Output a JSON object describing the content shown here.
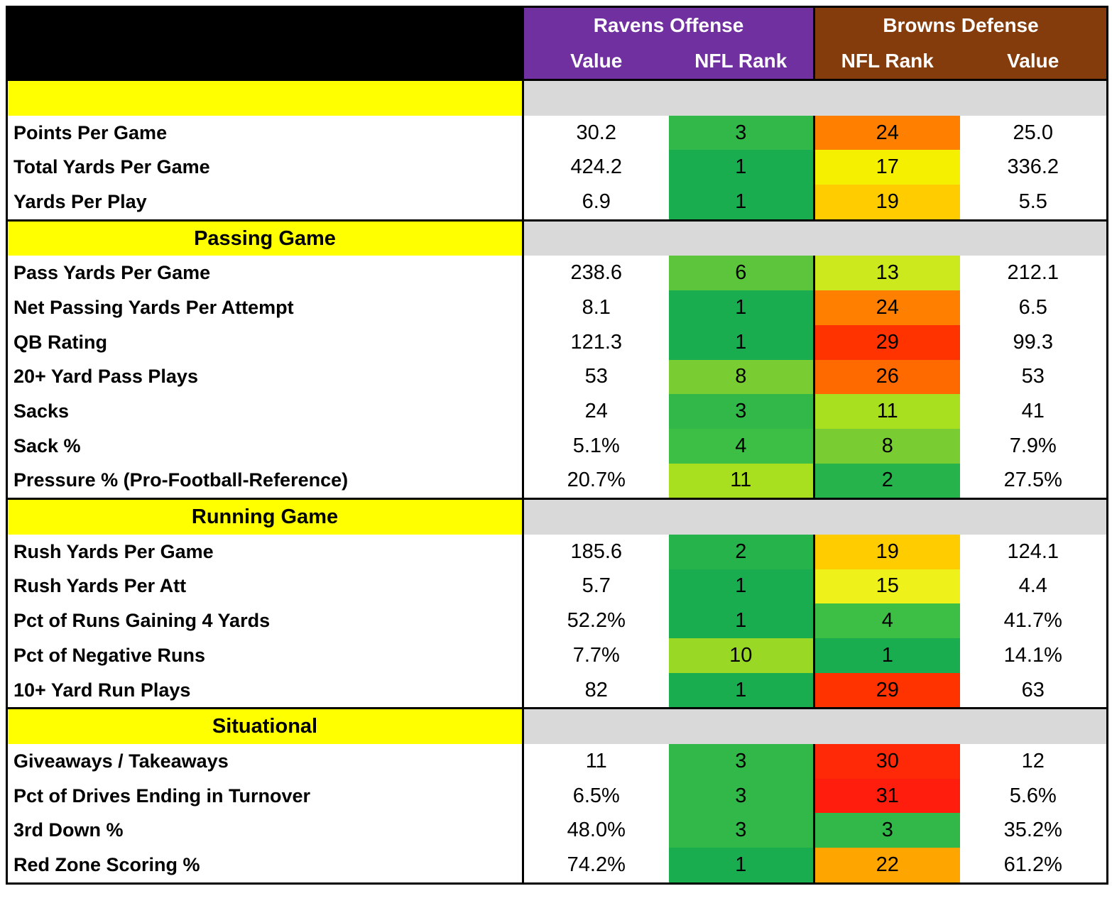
{
  "header": {
    "groups": [
      "Ravens Offense",
      "Browns Defense"
    ],
    "columns": [
      "Value",
      "NFL Rank",
      "NFL Rank",
      "Value"
    ]
  },
  "sections": [
    {
      "rows": [
        [
          "Points Per Game",
          "30.2",
          3,
          24,
          "25.0"
        ],
        [
          "Total Yards Per Game",
          "424.2",
          1,
          17,
          "336.2"
        ],
        [
          "Yards Per Play",
          "6.9",
          1,
          19,
          "5.5"
        ]
      ]
    },
    {
      "title": "Passing Game",
      "rows": [
        [
          "Pass Yards Per Game",
          "238.6",
          6,
          13,
          "212.1"
        ],
        [
          "Net Passing Yards Per Attempt",
          "8.1",
          1,
          24,
          "6.5"
        ],
        [
          "QB Rating",
          "121.3",
          1,
          29,
          "99.3"
        ],
        [
          "20+ Yard Pass Plays",
          "53",
          8,
          26,
          "53"
        ],
        [
          "Sacks",
          "24",
          3,
          11,
          "41"
        ],
        [
          "Sack %",
          "5.1%",
          4,
          8,
          "7.9%"
        ],
        [
          "Pressure % (Pro-Football-Reference)",
          "20.7%",
          11,
          2,
          "27.5%"
        ]
      ]
    },
    {
      "title": "Running Game",
      "rows": [
        [
          "Rush Yards Per Game",
          "185.6",
          2,
          19,
          "124.1"
        ],
        [
          "Rush Yards Per Att",
          "5.7",
          1,
          15,
          "4.4"
        ],
        [
          "Pct of Runs Gaining 4 Yards",
          "52.2%",
          1,
          4,
          "41.7%"
        ],
        [
          "Pct of Negative Runs",
          "7.7%",
          10,
          1,
          "14.1%"
        ],
        [
          "10+ Yard Run Plays",
          "82",
          1,
          29,
          "63"
        ]
      ]
    },
    {
      "title": "Situational",
      "rows": [
        [
          "Giveaways / Takeaways",
          "11",
          3,
          30,
          "12"
        ],
        [
          "Pct of Drives Ending in Turnover",
          "6.5%",
          3,
          31,
          "5.6%"
        ],
        [
          "3rd Down %",
          "48.0%",
          3,
          3,
          "35.2%"
        ],
        [
          "Red Zone Scoring %",
          "74.2%",
          1,
          22,
          "61.2%"
        ]
      ]
    }
  ]
}
